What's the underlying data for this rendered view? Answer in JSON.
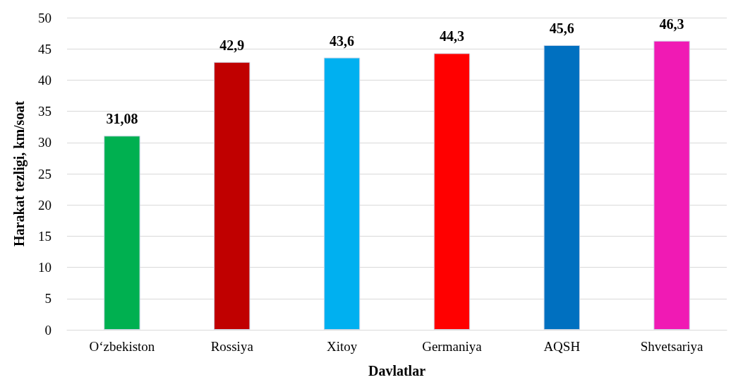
{
  "chart_data": {
    "type": "bar",
    "categories": [
      "O‘zbekiston",
      "Rossiya",
      "Xitoy",
      "Germaniya",
      "AQSH",
      "Shvetsariya"
    ],
    "values": [
      31.08,
      42.9,
      43.6,
      44.3,
      45.6,
      46.3
    ],
    "colors": [
      "#00b050",
      "#c00000",
      "#00b0f0",
      "#ff0000",
      "#0070c0",
      "#f01ab4"
    ],
    "value_labels": [
      "31,08",
      "42,9",
      "43,6",
      "44,3",
      "45,6",
      "46,3"
    ],
    "ylim": [
      0,
      50
    ],
    "yticks": [
      0,
      5,
      10,
      15,
      20,
      25,
      30,
      35,
      40,
      45,
      50
    ],
    "grid": "y",
    "xlabel": "Davlatlar",
    "ylabel": "Harakat tezligi, km/soat"
  }
}
